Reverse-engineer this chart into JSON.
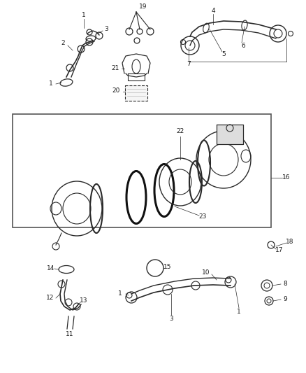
{
  "bg_color": "#ffffff",
  "fig_width": 4.38,
  "fig_height": 5.33,
  "dpi": 100,
  "font_size": 6.5,
  "label_color": "#1a1a1a",
  "line_color": "#2a2a2a",
  "border_color": "#444444"
}
